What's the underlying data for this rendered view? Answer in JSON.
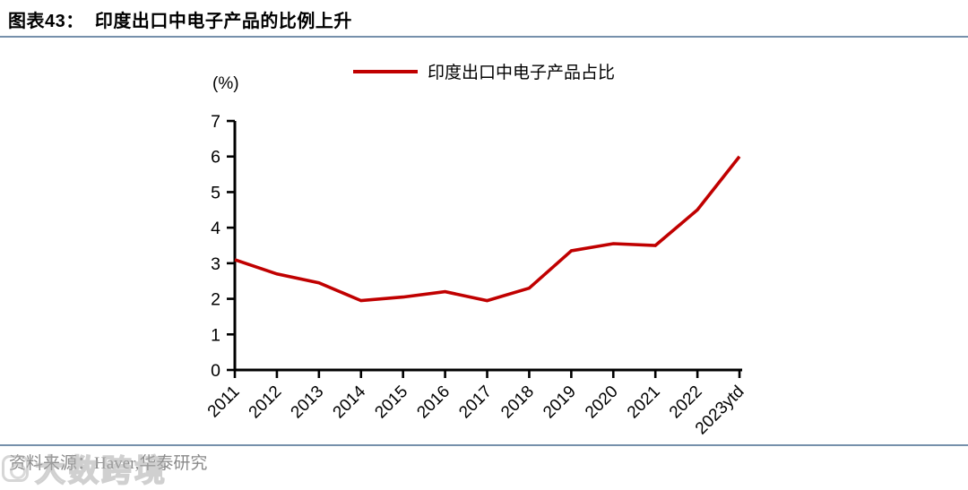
{
  "header": {
    "title": "图表43：  印度出口中电子产品的比例上升"
  },
  "footer": {
    "source": "资料来源：Haver,华泰研究",
    "watermark": "大数跨境"
  },
  "theme": {
    "rule_color": "#7690ab",
    "axis_color": "#000000",
    "series_color": "#c00000",
    "source_text_color": "#8a8a8a"
  },
  "chart_data": {
    "type": "line",
    "title": "印度出口中电子产品的比例上升",
    "unit_label": "(%)",
    "xlabel": "",
    "ylabel": "",
    "ylim": [
      0,
      7
    ],
    "ytick_interval": 1,
    "yticks": [
      0,
      1,
      2,
      3,
      4,
      5,
      6,
      7
    ],
    "grid": false,
    "legend_position": "top-center",
    "categories": [
      "2011",
      "2012",
      "2013",
      "2014",
      "2015",
      "2016",
      "2017",
      "2018",
      "2019",
      "2020",
      "2021",
      "2022",
      "2023ytd"
    ],
    "series": [
      {
        "name": "印度出口中电子产品占比",
        "color": "#c00000",
        "values": [
          3.1,
          2.7,
          2.45,
          1.95,
          2.05,
          2.2,
          1.95,
          2.3,
          3.35,
          3.55,
          3.5,
          4.5,
          6.0
        ]
      }
    ]
  }
}
